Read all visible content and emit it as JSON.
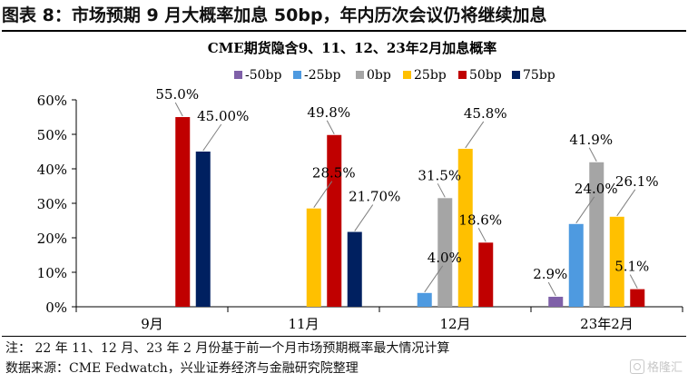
{
  "header": {
    "figure_title": "图表 8：市场预期 9 月大概率加息 50bp，年内历次会议仍将继续加息"
  },
  "chart_data": {
    "type": "bar",
    "title": "CME期货隐含9、11、12、23年2月加息概率",
    "categories": [
      "9月",
      "11月",
      "12月",
      "23年2月"
    ],
    "ylim": [
      0,
      60
    ],
    "yticks": [
      0,
      10,
      20,
      30,
      40,
      50,
      60
    ],
    "ytick_labels": [
      "0%",
      "10%",
      "20%",
      "30%",
      "40%",
      "50%",
      "60%"
    ],
    "legend_position": "top",
    "grid": false,
    "series": [
      {
        "name": "-50bp",
        "color": "#7f60a8",
        "values": [
          null,
          null,
          null,
          2.9
        ],
        "labels": [
          null,
          null,
          null,
          "2.9%"
        ]
      },
      {
        "name": "-25bp",
        "color": "#4e9ae0",
        "values": [
          null,
          null,
          4.0,
          24.0
        ],
        "labels": [
          null,
          null,
          "4.0%",
          "24.0%"
        ]
      },
      {
        "name": "0bp",
        "color": "#a5a5a5",
        "values": [
          null,
          null,
          31.5,
          41.9
        ],
        "labels": [
          null,
          null,
          "31.5%",
          "41.9%"
        ]
      },
      {
        "name": "25bp",
        "color": "#ffc000",
        "values": [
          null,
          28.5,
          45.8,
          26.1
        ],
        "labels": [
          null,
          "28.5%",
          "45.8%",
          "26.1%"
        ]
      },
      {
        "name": "50bp",
        "color": "#c00000",
        "values": [
          55.0,
          49.8,
          18.6,
          5.1
        ],
        "labels": [
          "55.0%",
          "49.8%",
          "18.6%",
          "5.1%"
        ]
      },
      {
        "name": "75bp",
        "color": "#002060",
        "values": [
          45.0,
          21.7,
          null,
          null
        ],
        "labels": [
          "45.00%",
          "21.70%",
          null,
          null
        ]
      }
    ]
  },
  "notes": {
    "line1": "注：  22 年 11、12 月、23 年 2 月份基于前一个月市场预期概率最大情况计算",
    "line2": "数据来源：CME Fedwatch，兴业证券经济与金融研究院整理"
  },
  "watermark": {
    "text": "格隆汇",
    "icon": "glh-logo-icon"
  }
}
